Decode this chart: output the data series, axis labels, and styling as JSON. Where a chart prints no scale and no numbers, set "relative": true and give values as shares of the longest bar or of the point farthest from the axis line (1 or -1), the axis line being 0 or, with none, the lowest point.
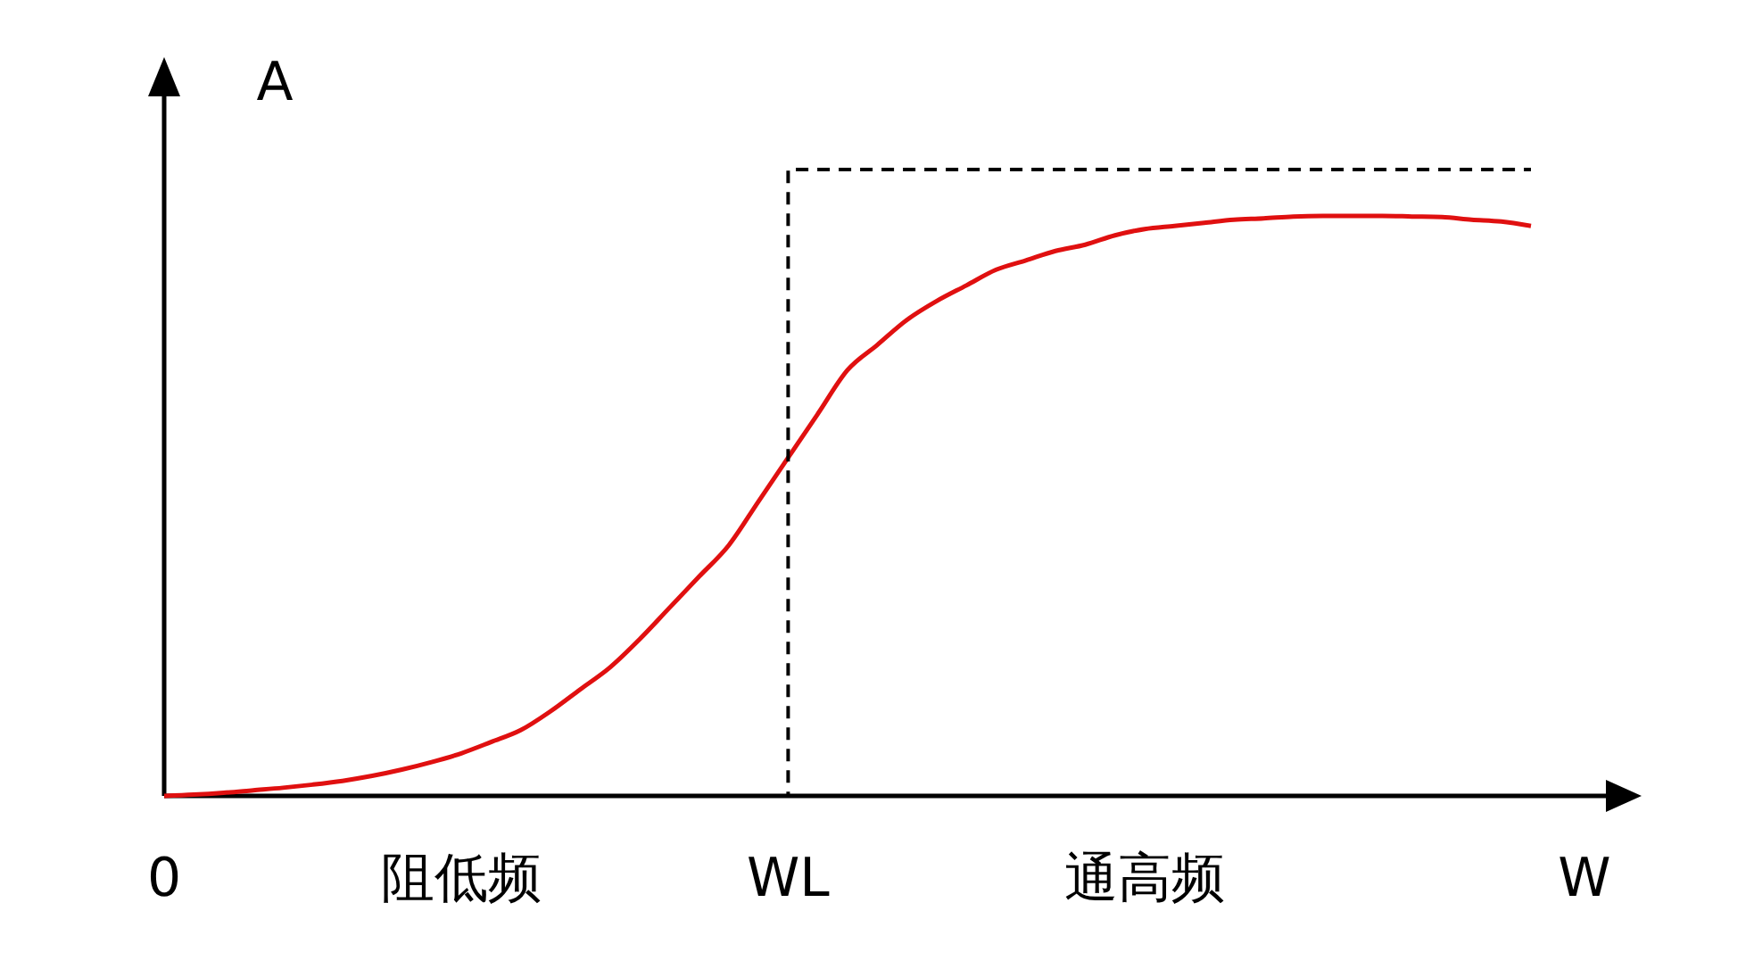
{
  "chart_data": {
    "type": "line",
    "relative": true,
    "xlabel": "W",
    "ylabel": "A",
    "categories": [
      "0",
      null,
      null,
      null,
      null,
      null,
      null,
      null,
      null,
      null,
      "阻低频",
      null,
      null,
      null,
      null,
      null,
      null,
      null,
      null,
      null,
      null,
      "WL",
      null,
      null,
      null,
      null,
      null,
      null,
      null,
      null,
      null,
      null,
      null,
      "通高频",
      null,
      null,
      null,
      null,
      null,
      null,
      null,
      null,
      null,
      null,
      null,
      null,
      null
    ],
    "series": [
      {
        "color": "#e01010",
        "line_style": "solid",
        "values": [
          0,
          0.002,
          0.005,
          0.009,
          0.013,
          0.018,
          0.024,
          0.032,
          0.042,
          0.054,
          0.068,
          0.086,
          0.105,
          0.135,
          0.17,
          0.205,
          0.25,
          0.3,
          0.35,
          0.4,
          0.47,
          0.54,
          0.61,
          0.68,
          0.72,
          0.76,
          0.79,
          0.815,
          0.84,
          0.855,
          0.87,
          0.88,
          0.895,
          0.905,
          0.91,
          0.915,
          0.92,
          0.922,
          0.925,
          0.926,
          0.926,
          0.926,
          0.925,
          0.924,
          0.92,
          0.917,
          0.91
        ]
      },
      {
        "type": "step",
        "color": "#000000",
        "line_style": "dashed",
        "values": [
          null,
          null,
          null,
          null,
          null,
          null,
          null,
          null,
          null,
          null,
          null,
          null,
          null,
          null,
          null,
          null,
          null,
          null,
          null,
          null,
          0,
          1,
          1,
          1,
          1,
          1,
          1,
          1,
          1,
          1,
          1,
          1,
          1,
          1,
          1,
          1,
          1,
          1,
          1,
          1,
          1,
          1,
          1,
          1,
          1,
          1,
          1
        ]
      }
    ]
  }
}
